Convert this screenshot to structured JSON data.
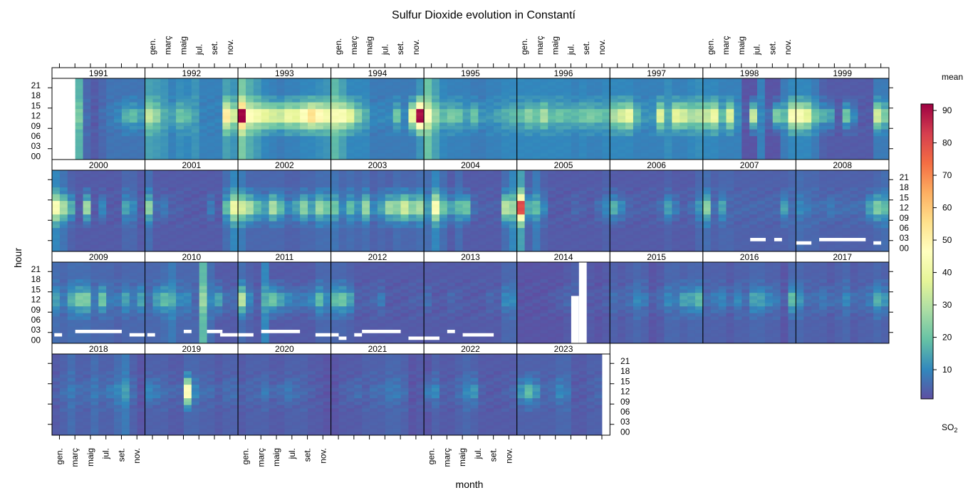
{
  "chart_data": {
    "type": "heatmap",
    "title": "Sulfur Dioxide evolution in Constantí",
    "xlabel": "month",
    "ylabel": "hour",
    "legend": {
      "title": "mean",
      "subtitle_base": "SO",
      "subtitle_sub": "2",
      "placement": "right",
      "range": [
        1,
        92
      ],
      "ticks": [
        10,
        20,
        30,
        40,
        50,
        60,
        70,
        80,
        90
      ],
      "palette": [
        "#5E4FA2",
        "#3288BD",
        "#66C2A5",
        "#ABDDA4",
        "#E6F598",
        "#FFFFBF",
        "#FEE08B",
        "#FDAE61",
        "#F46D43",
        "#D53E4F",
        "#9E0142"
      ]
    },
    "month_ticks": [
      "gen.",
      "març",
      "maig",
      "jul.",
      "set.",
      "nov."
    ],
    "hour_ticks": [
      "00",
      "03",
      "06",
      "09",
      "12",
      "15",
      "18",
      "21"
    ],
    "hours": 24,
    "months": 12,
    "layout": {
      "columns": 9,
      "rows": 4
    },
    "panels": [
      {
        "year": "1991",
        "base": [
          null,
          null,
          null,
          17,
          5,
          3,
          5,
          7,
          7,
          7,
          7,
          7
        ],
        "peak": [
          null,
          null,
          null,
          22,
          6,
          3,
          6,
          8,
          10,
          16,
          18,
          14
        ],
        "gaps": []
      },
      {
        "year": "1992",
        "base": [
          14,
          13,
          12,
          9,
          11,
          10,
          12,
          9,
          9,
          9,
          14,
          12
        ],
        "peak": [
          32,
          25,
          16,
          14,
          20,
          18,
          14,
          9,
          9,
          9,
          52,
          34
        ],
        "gaps": []
      },
      {
        "year": "1993",
        "base": [
          22,
          16,
          13,
          10,
          9,
          8,
          9,
          9,
          10,
          10,
          11,
          12
        ],
        "peak": [
          92,
          46,
          42,
          38,
          35,
          33,
          40,
          38,
          45,
          55,
          48,
          42
        ],
        "gaps": []
      },
      {
        "year": "1994",
        "base": [
          18,
          14,
          10,
          10,
          10,
          8,
          8,
          8,
          8,
          8,
          8,
          12
        ],
        "peak": [
          44,
          44,
          38,
          24,
          16,
          10,
          10,
          10,
          20,
          10,
          40,
          90
        ],
        "gaps": []
      },
      {
        "year": "1995",
        "base": [
          20,
          14,
          10,
          9,
          9,
          9,
          8,
          8,
          9,
          9,
          10,
          10
        ],
        "peak": [
          46,
          26,
          18,
          22,
          20,
          14,
          20,
          12,
          12,
          14,
          16,
          18
        ],
        "gaps": []
      },
      {
        "year": "1996",
        "base": [
          10,
          10,
          10,
          10,
          10,
          10,
          10,
          9,
          10,
          9,
          9,
          10
        ],
        "peak": [
          18,
          24,
          20,
          28,
          18,
          20,
          18,
          18,
          20,
          22,
          20,
          18
        ],
        "gaps": []
      },
      {
        "year": "1997",
        "base": [
          10,
          10,
          10,
          9,
          9,
          9,
          9,
          11,
          9,
          9,
          10,
          11
        ],
        "peak": [
          28,
          34,
          40,
          18,
          12,
          12,
          36,
          16,
          38,
          34,
          28,
          30
        ],
        "gaps": []
      },
      {
        "year": "1998",
        "base": [
          10,
          10,
          9,
          9,
          9,
          2,
          2,
          9,
          2,
          2,
          8,
          10
        ],
        "peak": [
          32,
          40,
          18,
          36,
          12,
          4,
          32,
          10,
          6,
          22,
          18,
          44
        ],
        "gaps": []
      },
      {
        "year": "1999",
        "base": [
          10,
          10,
          8,
          4,
          3,
          3,
          3,
          3,
          3,
          3,
          8,
          8
        ],
        "peak": [
          44,
          38,
          20,
          16,
          14,
          3,
          20,
          10,
          3,
          3,
          34,
          22
        ],
        "gaps": []
      },
      {
        "year": "2000",
        "base": [
          10,
          7,
          4,
          3,
          3,
          3,
          3,
          3,
          3,
          5,
          5,
          3
        ],
        "peak": [
          44,
          28,
          16,
          3,
          26,
          3,
          10,
          3,
          3,
          14,
          10,
          3
        ],
        "gaps": []
      },
      {
        "year": "2001",
        "base": [
          6,
          3,
          3,
          3,
          3,
          3,
          3,
          3,
          3,
          3,
          6,
          10
        ],
        "peak": [
          24,
          6,
          8,
          4,
          4,
          3,
          3,
          3,
          8,
          3,
          18,
          40
        ],
        "gaps": []
      },
      {
        "year": "2002",
        "base": [
          8,
          5,
          5,
          5,
          5,
          5,
          4,
          4,
          5,
          5,
          6,
          6
        ],
        "peak": [
          34,
          28,
          18,
          14,
          28,
          18,
          10,
          14,
          24,
          14,
          26,
          20
        ],
        "gaps": []
      },
      {
        "year": "2003",
        "base": [
          7,
          5,
          6,
          5,
          6,
          4,
          5,
          4,
          6,
          5,
          5,
          6
        ],
        "peak": [
          20,
          10,
          18,
          12,
          26,
          10,
          14,
          26,
          24,
          34,
          24,
          28
        ],
        "gaps": []
      },
      {
        "year": "2004",
        "base": [
          6,
          10,
          6,
          3,
          6,
          3,
          3,
          3,
          3,
          3,
          6,
          10
        ],
        "peak": [
          14,
          44,
          20,
          14,
          18,
          20,
          6,
          4,
          4,
          4,
          30,
          26
        ],
        "gaps": []
      },
      {
        "year": "2005",
        "base": [
          14,
          4,
          8,
          4,
          3,
          3,
          3,
          3,
          3,
          3,
          3,
          4
        ],
        "peak": [
          80,
          16,
          18,
          10,
          3,
          3,
          3,
          5,
          4,
          3,
          6,
          10
        ],
        "gaps": []
      },
      {
        "year": "2006",
        "base": [
          3,
          3,
          3,
          3,
          3,
          3,
          3,
          4,
          3,
          3,
          3,
          5
        ],
        "peak": [
          16,
          10,
          5,
          4,
          4,
          4,
          6,
          14,
          8,
          4,
          6,
          12
        ],
        "gaps": []
      },
      {
        "year": "2007",
        "base": [
          6,
          4,
          5,
          5,
          4,
          4,
          4,
          4,
          4,
          4,
          4,
          5
        ],
        "peak": [
          24,
          6,
          14,
          5,
          5,
          5,
          5,
          5,
          5,
          5,
          14,
          6
        ],
        "gaps": [
          {
            "from": 6.1,
            "to": 8.1,
            "hour": 3
          },
          {
            "from": 9.2,
            "to": 10.2,
            "hour": 3
          }
        ]
      },
      {
        "year": "2008",
        "base": [
          6,
          5,
          5,
          4,
          4,
          4,
          4,
          4,
          4,
          4,
          5,
          6
        ],
        "peak": [
          10,
          8,
          6,
          6,
          8,
          6,
          6,
          6,
          6,
          14,
          22,
          18
        ],
        "gaps": [
          {
            "from": 0,
            "to": 2,
            "hour": 2
          },
          {
            "from": 3,
            "to": 9,
            "hour": 3
          },
          {
            "from": 10,
            "to": 11,
            "hour": 2
          }
        ]
      },
      {
        "year": "2009",
        "base": [
          6,
          5,
          6,
          6,
          6,
          5,
          5,
          5,
          4,
          5,
          5,
          5
        ],
        "peak": [
          14,
          8,
          16,
          22,
          22,
          8,
          20,
          8,
          8,
          14,
          8,
          14
        ],
        "gaps": [
          {
            "from": 0.3,
            "to": 1.3,
            "hour": 2
          },
          {
            "from": 3,
            "to": 9,
            "hour": 3
          },
          {
            "from": 10,
            "to": 12,
            "hour": 2
          }
        ]
      },
      {
        "year": "2010",
        "base": [
          5,
          5,
          6,
          8,
          5,
          5,
          5,
          18,
          6,
          3,
          3,
          3
        ],
        "peak": [
          6,
          14,
          18,
          16,
          10,
          10,
          5,
          26,
          10,
          14,
          6,
          6
        ],
        "gaps": [
          {
            "from": 0.3,
            "to": 1.3,
            "hour": 2
          },
          {
            "from": 5.0,
            "to": 6.0,
            "hour": 3
          },
          {
            "from": 8.0,
            "to": 10.0,
            "hour": 3
          },
          {
            "from": 9.7,
            "to": 12,
            "hour": 2
          }
        ]
      },
      {
        "year": "2011",
        "base": [
          6,
          4,
          3,
          10,
          3,
          3,
          3,
          3,
          3,
          3,
          5,
          5
        ],
        "peak": [
          30,
          10,
          4,
          16,
          20,
          14,
          10,
          8,
          8,
          10,
          18,
          10
        ],
        "gaps": [
          {
            "from": 0,
            "to": 2,
            "hour": 2
          },
          {
            "from": 3,
            "to": 8,
            "hour": 3
          },
          {
            "from": 10,
            "to": 12,
            "hour": 2
          }
        ]
      },
      {
        "year": "2012",
        "base": [
          5,
          5,
          4,
          3,
          3,
          3,
          3,
          3,
          3,
          3,
          3,
          3
        ],
        "peak": [
          18,
          20,
          14,
          4,
          4,
          5,
          8,
          3,
          3,
          3,
          4,
          4
        ],
        "gaps": [
          {
            "from": 0,
            "to": 1,
            "hour": 2
          },
          {
            "from": 1,
            "to": 2,
            "hour": 1
          },
          {
            "from": 3,
            "to": 4,
            "hour": 2
          },
          {
            "from": 4,
            "to": 9,
            "hour": 3
          },
          {
            "from": 10,
            "to": 12,
            "hour": 1
          }
        ]
      },
      {
        "year": "2013",
        "base": [
          3,
          3,
          3,
          3,
          3,
          3,
          3,
          3,
          3,
          3,
          5,
          5
        ],
        "peak": [
          6,
          3,
          3,
          5,
          4,
          3,
          3,
          3,
          5,
          4,
          10,
          10
        ],
        "gaps": [
          {
            "from": 0,
            "to": 2,
            "hour": 1
          },
          {
            "from": 3,
            "to": 4,
            "hour": 3
          },
          {
            "from": 5,
            "to": 9,
            "hour": 2
          }
        ]
      },
      {
        "year": "2014",
        "base": [
          2,
          2,
          2,
          2,
          2,
          2,
          3,
          4,
          4,
          3,
          2,
          3
        ],
        "peak": [
          2,
          2,
          2,
          2,
          3,
          4,
          5,
          5,
          4,
          3,
          3,
          4
        ],
        "gaps": [
          {
            "from": 7,
            "to": 8,
            "hour": 0,
            "span": 14
          },
          {
            "from": 8,
            "to": 9,
            "hour": 0,
            "span": 24
          }
        ]
      },
      {
        "year": "2015",
        "base": [
          4,
          3,
          4,
          5,
          4,
          2,
          3,
          5,
          5,
          4,
          5,
          5
        ],
        "peak": [
          6,
          5,
          6,
          10,
          8,
          4,
          6,
          10,
          8,
          14,
          14,
          18
        ],
        "gaps": []
      },
      {
        "year": "2016",
        "base": [
          4,
          4,
          4,
          3,
          4,
          4,
          5,
          5,
          4,
          4,
          2,
          5
        ],
        "peak": [
          6,
          8,
          10,
          6,
          10,
          6,
          14,
          14,
          10,
          8,
          4,
          18
        ],
        "gaps": []
      },
      {
        "year": "2017",
        "base": [
          5,
          4,
          4,
          4,
          3,
          4,
          5,
          3,
          4,
          4,
          5,
          4
        ],
        "peak": [
          12,
          6,
          6,
          8,
          6,
          6,
          10,
          6,
          6,
          8,
          16,
          12
        ],
        "gaps": []
      },
      {
        "year": "2018",
        "base": [
          3,
          4,
          6,
          4,
          4,
          6,
          4,
          4,
          6,
          8,
          4,
          2
        ],
        "peak": [
          4,
          6,
          8,
          6,
          6,
          8,
          6,
          8,
          10,
          14,
          6,
          2
        ],
        "gaps": []
      },
      {
        "year": "2019",
        "base": [
          4,
          4,
          4,
          3,
          3,
          5,
          5,
          4,
          4,
          3,
          4,
          4
        ],
        "peak": [
          10,
          8,
          6,
          5,
          5,
          46,
          10,
          6,
          6,
          4,
          6,
          6
        ],
        "gaps": []
      },
      {
        "year": "2020",
        "base": [
          3,
          4,
          4,
          4,
          3,
          3,
          4,
          4,
          4,
          3,
          3,
          2
        ],
        "peak": [
          4,
          5,
          5,
          8,
          5,
          6,
          8,
          6,
          5,
          4,
          3,
          2
        ],
        "gaps": []
      },
      {
        "year": "2021",
        "base": [
          2,
          3,
          3,
          3,
          4,
          4,
          4,
          5,
          5,
          4,
          2,
          3
        ],
        "peak": [
          2,
          4,
          5,
          6,
          4,
          6,
          6,
          8,
          8,
          6,
          2,
          3
        ],
        "gaps": []
      },
      {
        "year": "2022",
        "base": [
          2,
          4,
          3,
          3,
          4,
          5,
          4,
          3,
          3,
          3,
          3,
          3
        ],
        "peak": [
          8,
          10,
          4,
          4,
          6,
          10,
          12,
          4,
          3,
          3,
          4,
          5
        ],
        "gaps": []
      },
      {
        "year": "2023",
        "base": [
          4,
          4,
          4,
          4,
          4,
          5,
          5,
          3,
          3,
          4,
          4,
          3
        ],
        "peak": [
          12,
          18,
          12,
          5,
          6,
          10,
          8,
          3,
          3,
          4,
          5,
          3
        ],
        "gaps": [
          {
            "from": 11,
            "to": 12,
            "hour": 0,
            "span": 24
          }
        ]
      }
    ]
  }
}
